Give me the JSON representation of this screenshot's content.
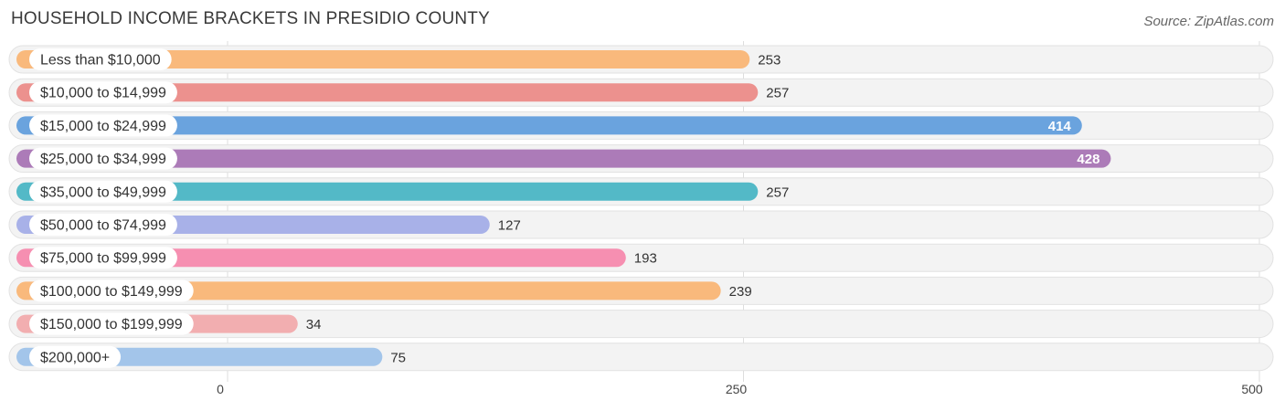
{
  "header": {
    "title": "HOUSEHOLD INCOME BRACKETS IN PRESIDIO COUNTY",
    "source": "Source: ZipAtlas.com"
  },
  "chart_data": {
    "type": "bar",
    "orientation": "horizontal",
    "title": "HOUSEHOLD INCOME BRACKETS IN PRESIDIO COUNTY",
    "categories": [
      "Less than $10,000",
      "$10,000 to $14,999",
      "$15,000 to $24,999",
      "$25,000 to $34,999",
      "$35,000 to $49,999",
      "$50,000 to $74,999",
      "$75,000 to $99,999",
      "$100,000 to $149,999",
      "$150,000 to $199,999",
      "$200,000+"
    ],
    "values": [
      253,
      257,
      414,
      428,
      257,
      127,
      193,
      239,
      34,
      75
    ],
    "value_labels": [
      "253",
      "257",
      "414",
      "428",
      "257",
      "127",
      "193",
      "239",
      "34",
      "75"
    ],
    "colors": [
      "#f9b97c",
      "#ec918e",
      "#6aa3de",
      "#ac7bb8",
      "#53b9c7",
      "#a8b1e8",
      "#f68fb1",
      "#f9b97c",
      "#f2aeb0",
      "#a3c5ea"
    ],
    "xlim": [
      0,
      500
    ],
    "xticks": [
      0,
      250,
      500
    ],
    "xtick_labels": [
      "0",
      "250",
      "500"
    ],
    "grid": true,
    "xlabel": "",
    "ylabel": ""
  }
}
